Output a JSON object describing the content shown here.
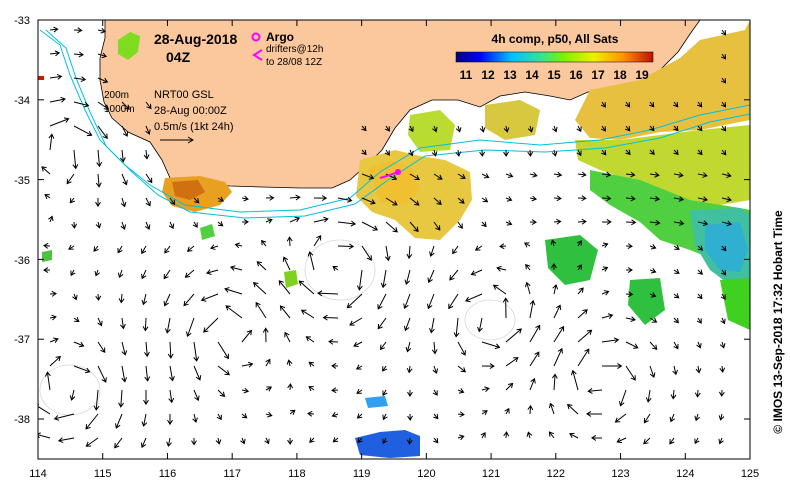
{
  "map": {
    "date": "28-Aug-2018",
    "time": "04Z",
    "argo_label": "Argo",
    "drifters_line1": "drifters@12h",
    "drifters_line2": "to 28/08 12Z",
    "contour_200": "200m",
    "contour_1000": "1000m",
    "product": "NRT00 GSL",
    "product_time": "28-Aug 00:00Z",
    "vector_scale": "0.5m/s (1kt 24h)",
    "colorbar_title": "4h comp, p50, All Sats",
    "colorbar_ticks": [
      "11",
      "12",
      "13",
      "14",
      "15",
      "16",
      "17",
      "18",
      "19"
    ],
    "credit": "© IMOS 13-Sep-2018 17:32 Hobart Time",
    "x_ticks": [
      "114",
      "115",
      "116",
      "117",
      "118",
      "119",
      "120",
      "121",
      "122",
      "123",
      "124",
      "125"
    ],
    "y_ticks": [
      "-33",
      "-34",
      "-35",
      "-36",
      "-37",
      "-38"
    ],
    "lon_range": [
      114,
      125
    ],
    "lat_range": [
      -38.5,
      -33
    ],
    "colors": {
      "land": "#fbc79d",
      "argo": "#ff00ff",
      "contour": "#00c0e0"
    }
  }
}
